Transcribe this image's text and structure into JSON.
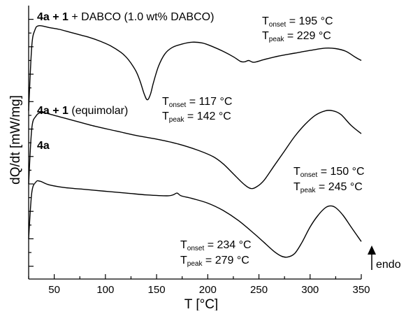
{
  "chart_data": {
    "type": "line",
    "xlabel": "T [°C]",
    "ylabel": "dQ/dt [mW/mg]",
    "xlim": [
      25,
      350
    ],
    "x_ticks": [
      50,
      100,
      150,
      200,
      250,
      300,
      350
    ],
    "x_tick_labels": [
      "50",
      "100",
      "150",
      "200",
      "250",
      "300",
      "350"
    ],
    "y_ticks_numbered": false,
    "grid": false,
    "series": [
      {
        "name_bold": "4a + 1",
        "name_rest": " + DABCO (1.0 wt% DABCO)",
        "x": [
          25,
          28,
          31,
          35,
          45,
          55,
          65,
          75,
          85,
          95,
          105,
          115,
          120,
          125,
          130,
          134,
          138,
          141,
          144,
          147,
          152,
          158,
          165,
          175,
          185,
          195,
          205,
          215,
          225,
          232,
          236,
          240,
          245,
          255,
          270,
          285,
          300,
          315,
          325,
          335,
          345,
          350
        ],
        "y": [
          0.0,
          7.0,
          8.8,
          9.3,
          9.1,
          8.9,
          8.6,
          8.3,
          8.0,
          7.6,
          7.1,
          6.4,
          5.9,
          5.2,
          4.3,
          3.2,
          1.8,
          1.2,
          1.8,
          3.1,
          4.9,
          6.2,
          6.9,
          7.3,
          7.5,
          7.4,
          7.0,
          6.5,
          5.9,
          5.4,
          5.35,
          5.5,
          5.3,
          5.6,
          6.0,
          6.3,
          6.6,
          6.85,
          6.8,
          6.5,
          5.8,
          5.5
        ]
      },
      {
        "name_bold": "4a + 1",
        "name_rest": " (equimolar)",
        "x": [
          25,
          28,
          32,
          38,
          50,
          70,
          90,
          110,
          130,
          150,
          170,
          190,
          205,
          215,
          225,
          235,
          242,
          248,
          255,
          265,
          275,
          285,
          295,
          305,
          315,
          322,
          330,
          340,
          350
        ],
        "y": [
          -8.0,
          -2.0,
          -0.6,
          -0.2,
          -0.5,
          -1.1,
          -1.7,
          -2.2,
          -2.7,
          -3.1,
          -3.6,
          -4.3,
          -5.0,
          -5.8,
          -6.9,
          -8.0,
          -8.5,
          -8.3,
          -7.6,
          -6.0,
          -4.4,
          -2.8,
          -1.5,
          -0.5,
          0.0,
          0.0,
          -0.4,
          -1.6,
          -2.5
        ]
      },
      {
        "name_bold": "4a",
        "name_rest": "",
        "x": [
          25,
          28,
          32,
          36,
          45,
          60,
          80,
          100,
          120,
          140,
          160,
          166,
          170,
          174,
          185,
          200,
          215,
          230,
          245,
          255,
          265,
          272,
          278,
          285,
          292,
          300,
          308,
          315,
          320,
          325,
          332,
          340,
          350
        ],
        "y": [
          -14.0,
          -9.0,
          -7.8,
          -7.7,
          -8.1,
          -8.4,
          -8.6,
          -8.8,
          -9.0,
          -9.2,
          -9.3,
          -9.2,
          -9.0,
          -9.3,
          -9.6,
          -10.1,
          -10.9,
          -12.0,
          -13.4,
          -14.4,
          -15.4,
          -15.9,
          -16.0,
          -15.6,
          -14.4,
          -12.7,
          -11.4,
          -10.6,
          -10.4,
          -10.6,
          -11.4,
          -12.7,
          -14.3
        ]
      }
    ],
    "annotations": [
      {
        "onset": "195 °C",
        "peak": "229 °C"
      },
      {
        "onset": "117 °C",
        "peak": "142 °C"
      },
      {
        "onset": "150 °C",
        "peak": "245 °C"
      },
      {
        "onset": "234 °C",
        "peak": "279 °C"
      }
    ],
    "direction_label": "endo"
  }
}
